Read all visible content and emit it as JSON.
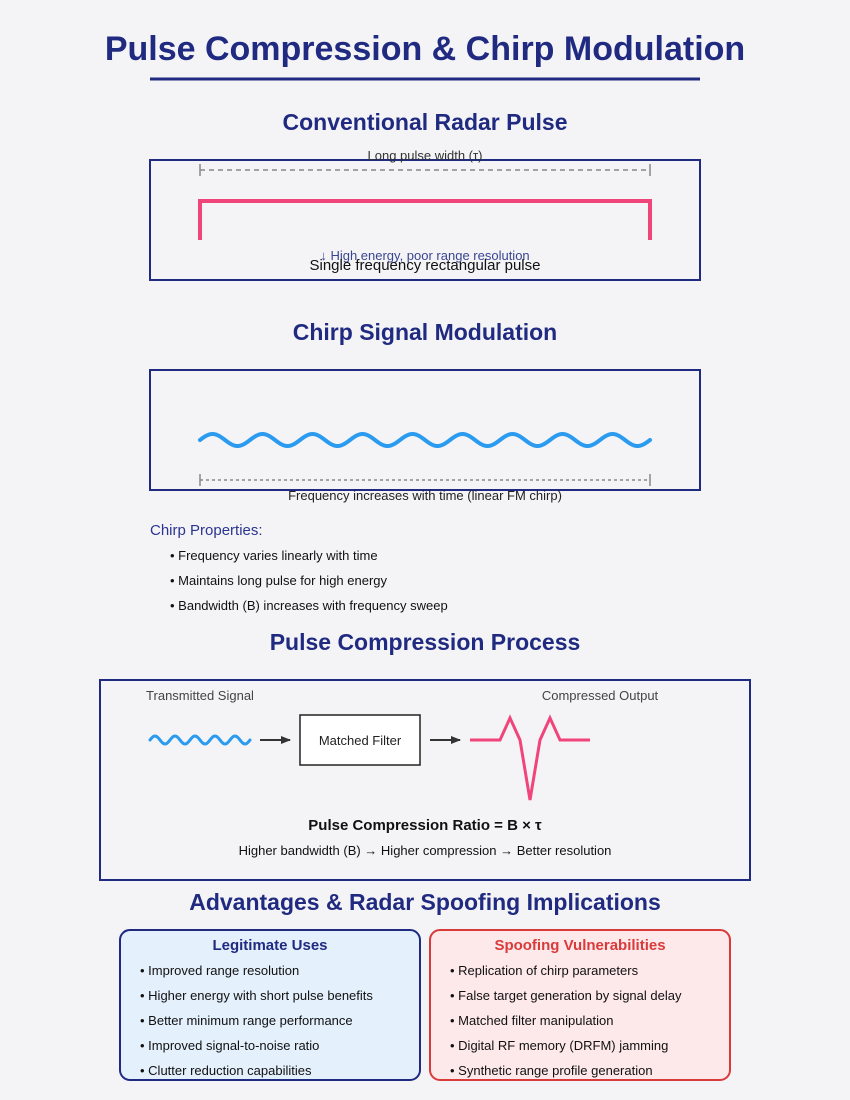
{
  "title": "Pulse Compression & Chirp Modulation",
  "conventional": {
    "heading": "Conventional Radar Pulse",
    "pulse_width_label": "Long pulse width (τ)",
    "energy_note": "↓ High energy, poor range resolution",
    "caption": "Single frequency rectangular pulse"
  },
  "chirp": {
    "heading": "Chirp Signal Modulation",
    "caption": "Frequency increases with time (linear FM chirp)",
    "properties_title": "Chirp Properties:",
    "properties": [
      "• Frequency varies linearly with time",
      "• Maintains long pulse for high energy",
      "• Bandwidth (B) increases with frequency sweep"
    ]
  },
  "compression": {
    "heading": "Pulse Compression Process",
    "transmitted_label": "Transmitted Signal",
    "filter_label": "Matched Filter",
    "output_label": "Compressed Output",
    "ratio": "Pulse Compression Ratio = B × τ",
    "note": "Higher bandwidth (B) → Higher compression → Better resolution"
  },
  "advantages": {
    "heading": "Advantages & Radar Spoofing Implications",
    "legit_title": "Legitimate Uses",
    "legit_items": [
      "• Improved range resolution",
      "• Higher energy with short pulse benefits",
      "• Better minimum range performance",
      "• Improved signal-to-noise ratio",
      "• Clutter reduction capabilities"
    ],
    "spoof_title": "Spoofing Vulnerabilities",
    "spoof_items": [
      "• Replication of chirp parameters",
      "• False target generation by signal delay",
      "• Matched filter manipulation",
      "• Digital RF memory (DRFM) jamming",
      "• Synthetic range profile generation"
    ]
  },
  "colors": {
    "title": "#1f2a80",
    "pulse": "#f0457a",
    "chirp": "#2b9bef",
    "legit_bg": "#e4f0fc",
    "spoof_bg": "#fde8ea",
    "spoof_title": "#d93a3a"
  }
}
